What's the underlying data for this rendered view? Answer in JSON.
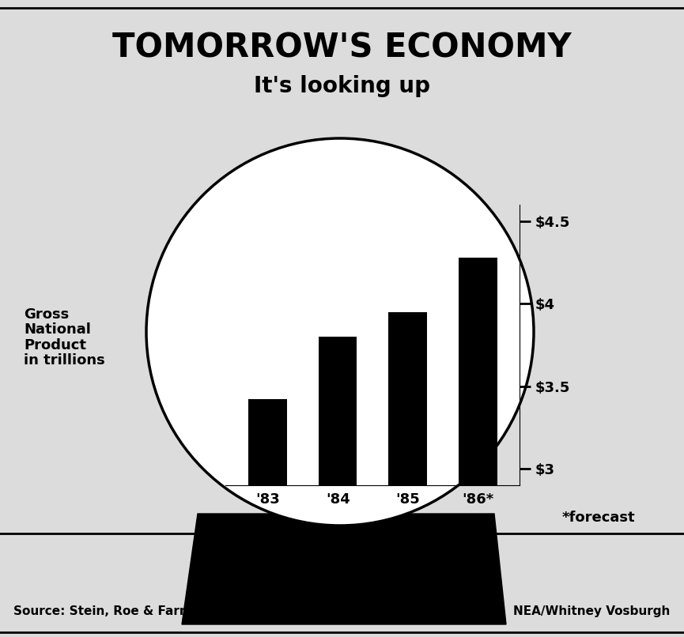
{
  "chart_data": {
    "type": "bar",
    "title": "TOMORROW'S ECONOMY",
    "subtitle": "It's looking up",
    "y_label": "Gross\nNational\nProduct\nin trillions",
    "categories": [
      "'83",
      "'84",
      "'85",
      "'86*"
    ],
    "values": [
      3.42,
      3.8,
      3.95,
      4.28
    ],
    "color": "#000000",
    "ylim": [
      2.9,
      4.6
    ],
    "yticks": [
      {
        "value": 3,
        "label": "$3"
      },
      {
        "value": 3.5,
        "label": "$3.5"
      },
      {
        "value": 4,
        "label": "$4"
      },
      {
        "value": 4.5,
        "label": "$4.5"
      }
    ],
    "grid": false,
    "annotations": [
      "*forecast"
    ],
    "source": "Source: Stein, Roe & Farnham",
    "credit": "NEA/Whitney Vosburgh"
  }
}
